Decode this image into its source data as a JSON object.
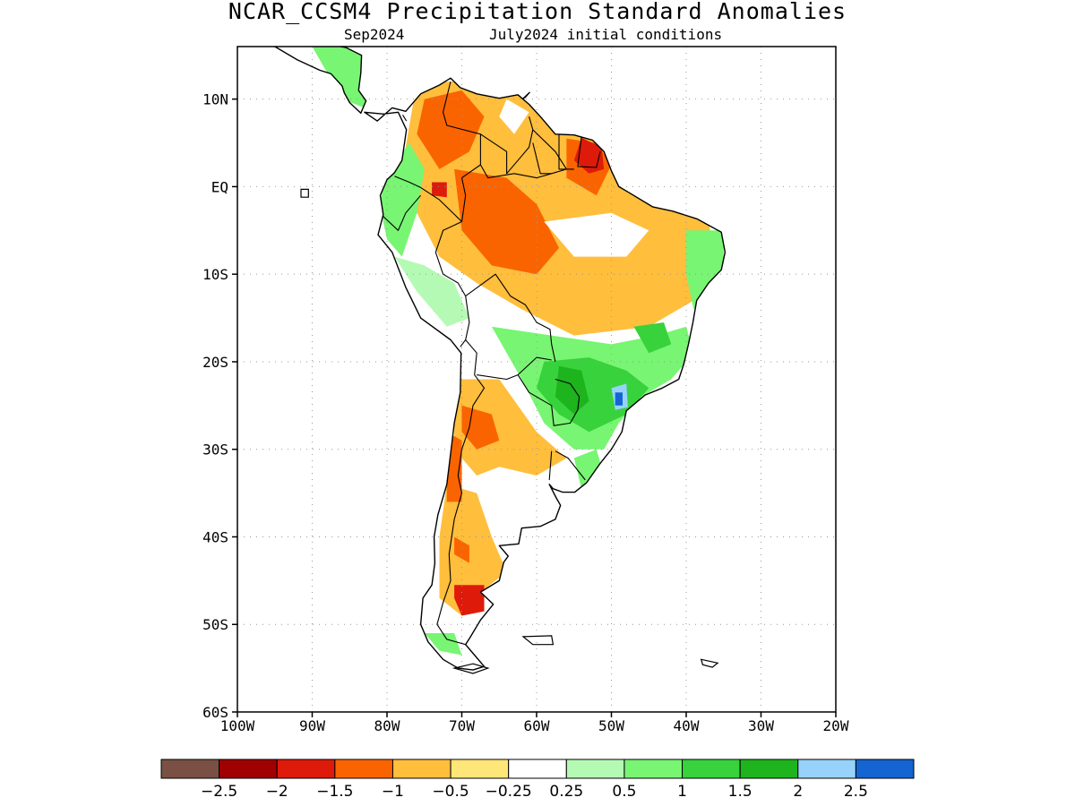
{
  "title": "NCAR_CCSM4 Precipitation Standard Anomalies",
  "subtitle_left": "Sep2024",
  "subtitle_right": "July2024 initial conditions",
  "map": {
    "lon_range": [
      -100,
      -20
    ],
    "lat_range": [
      -60,
      16
    ],
    "lat_ticks": [
      {
        "value": 10,
        "label": "10N"
      },
      {
        "value": 0,
        "label": "EQ"
      },
      {
        "value": -10,
        "label": "10S"
      },
      {
        "value": -20,
        "label": "20S"
      },
      {
        "value": -30,
        "label": "30S"
      },
      {
        "value": -40,
        "label": "40S"
      },
      {
        "value": -50,
        "label": "50S"
      },
      {
        "value": -60,
        "label": "60S"
      }
    ],
    "lon_ticks": [
      {
        "value": -100,
        "label": "100W"
      },
      {
        "value": -90,
        "label": "90W"
      },
      {
        "value": -80,
        "label": "80W"
      },
      {
        "value": -70,
        "label": "70W"
      },
      {
        "value": -60,
        "label": "60W"
      },
      {
        "value": -50,
        "label": "50W"
      },
      {
        "value": -40,
        "label": "40W"
      },
      {
        "value": -30,
        "label": "30W"
      },
      {
        "value": -20,
        "label": "20W"
      }
    ],
    "grid": "dotted",
    "continent": "South America"
  },
  "anomaly_regions": [
    {
      "name": "Northern South America / Amazon",
      "anomaly": "-0.5 to -1 (dry)"
    },
    {
      "name": "French Guiana / Amapa",
      "anomaly": "-1.5 to -2 (very dry)"
    },
    {
      "name": "Colombia interior",
      "anomaly": "-1 to -1.5"
    },
    {
      "name": "Pacific coast Colombia / Ecuador",
      "anomaly": "0.5 to 1.5 (wet)"
    },
    {
      "name": "Southern Brazil / Paraguay",
      "anomaly": "1 to 2 (wet)"
    },
    {
      "name": "Parana / Sao Paulo coast",
      "anomaly": "2 to 2.5 (very wet)"
    },
    {
      "name": "Northern Argentina / Chile",
      "anomaly": "-0.5 to -1 (dry)"
    },
    {
      "name": "Southern Patagonia",
      "anomaly": "-1.5 to -2 (very dry)"
    }
  ],
  "colorbar": {
    "colors": [
      "#7a5044",
      "#a00000",
      "#de1a0a",
      "#fa6400",
      "#ffbe3c",
      "#ffe678",
      "#ffffff",
      "#b4fab4",
      "#78f572",
      "#37d23c",
      "#1eb41e",
      "#96d2fa",
      "#1464d2"
    ],
    "labels": [
      "−2.5",
      "−2",
      "−1.5",
      "−1",
      "−0.5",
      "−0.25",
      "0.25",
      "0.5",
      "1",
      "1.5",
      "2",
      "2.5"
    ]
  }
}
